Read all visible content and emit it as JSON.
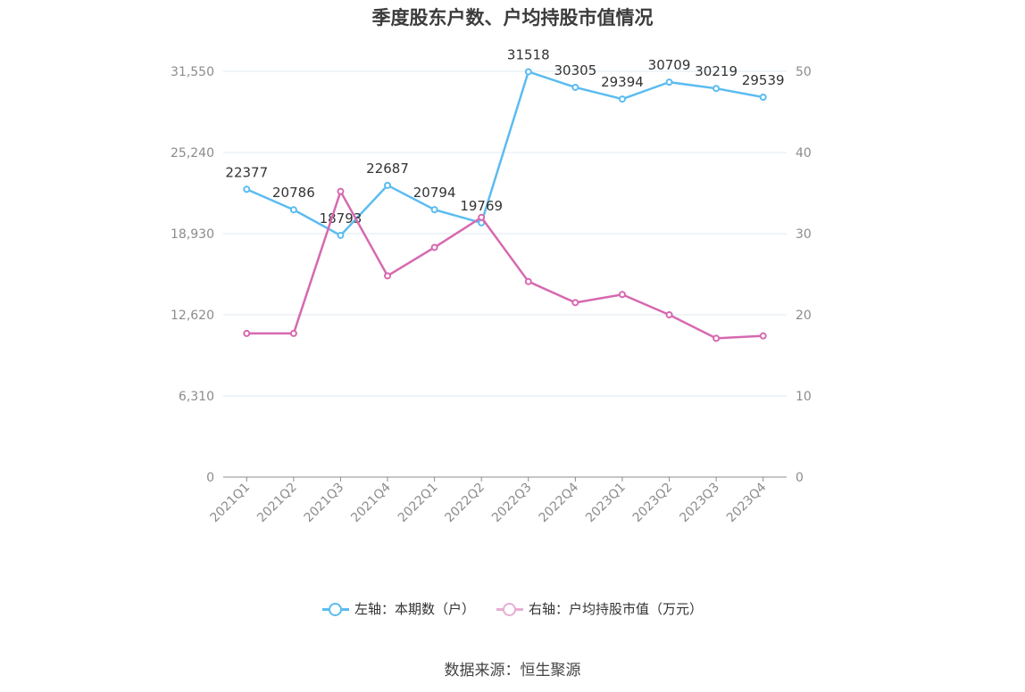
{
  "title": "季度股东户数、户均持股市值情况",
  "source": "数据来源：恒生聚源",
  "legend": {
    "left_label": "左轴：本期数（户）",
    "right_label": "右轴：户均持股市值（万元）"
  },
  "colors": {
    "series_left": "#5bbcf0",
    "series_right": "#d669b0",
    "grid": "#dfe8f2",
    "axis_text": "#8c8c8c",
    "data_label": "#333333"
  },
  "chart_data": {
    "type": "line",
    "categories": [
      "2021Q1",
      "2021Q2",
      "2021Q3",
      "2021Q4",
      "2022Q1",
      "2022Q2",
      "2022Q3",
      "2022Q4",
      "2023Q1",
      "2023Q2",
      "2023Q3",
      "2023Q4"
    ],
    "y_left": {
      "ticks": [
        "0",
        "6,310",
        "12,620",
        "18,930",
        "25,240",
        "31,550"
      ],
      "ylim": [
        0,
        31550
      ]
    },
    "y_right": {
      "ticks": [
        "0",
        "10",
        "20",
        "30",
        "40",
        "50"
      ],
      "ylim": [
        0,
        50
      ]
    },
    "grid": true,
    "legend_position": "bottom",
    "series": [
      {
        "name": "左轴：本期数（户）",
        "axis": "left",
        "values": [
          22377,
          20786,
          18793,
          22687,
          20794,
          19769,
          31518,
          30305,
          29394,
          30709,
          30219,
          29539
        ],
        "labels": [
          "22377",
          "20786",
          "18793",
          "22687",
          "20794",
          "19769",
          "31518",
          "30305",
          "29394",
          "30709",
          "30219",
          "29539"
        ]
      },
      {
        "name": "右轴：户均持股市值（万元）",
        "axis": "right",
        "values": [
          17.7,
          17.7,
          35.2,
          24.8,
          28.3,
          32.0,
          24.1,
          21.5,
          22.5,
          20.0,
          17.1,
          17.4
        ]
      }
    ]
  }
}
